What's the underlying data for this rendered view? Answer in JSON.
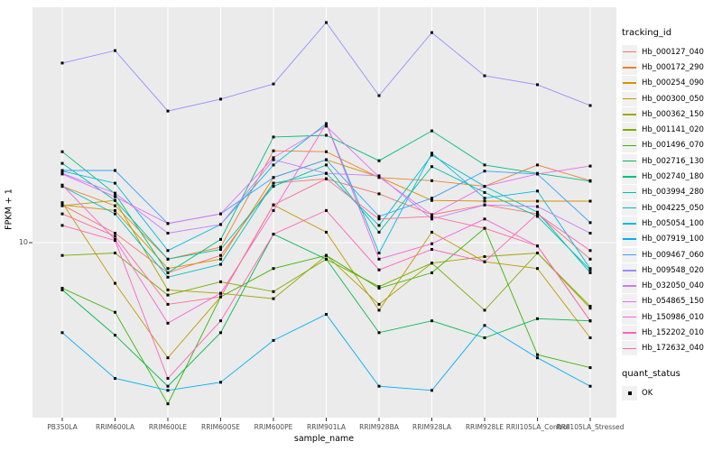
{
  "chart": {
    "ylabel": "FPKM + 1",
    "xlabel": "sample_name",
    "y_tick_label": "10",
    "legend_title": "tracking_id",
    "quant_legend_title": "quant_status",
    "quant_ok_label": "OK"
  },
  "chart_data": {
    "type": "line",
    "title": "",
    "xlabel": "sample_name",
    "ylabel": "FPKM + 1",
    "y_scale": "log10",
    "ylim": [
      2,
      86
    ],
    "y_breaks_labeled": [
      10
    ],
    "grid": true,
    "panel_background": "#EBEBEB",
    "gridline_color": "#FFFFFF",
    "point_marker": "filled-black-square",
    "legend_position": "right",
    "legend_title": "tracking_id",
    "quant_status": {
      "title": "quant_status",
      "values": [
        "OK"
      ]
    },
    "categories": [
      "PB350LA",
      "RRIM600LA",
      "RRIM600LE",
      "RRIM600SE",
      "RRIM600PE",
      "RRIM901LA",
      "RRIM928BA",
      "RRIM928LA",
      "RRIM928LE",
      "RRII105LA_Control",
      "RRII105LA_Stressed"
    ],
    "series": [
      {
        "name": "Hb_000127_040",
        "color": "#F8766D",
        "values": [
          14.1,
          10.9,
          7.6,
          8.9,
          17.2,
          17.9,
          15.6,
          12.9,
          14.1,
          13.0,
          8.6
        ]
      },
      {
        "name": "Hb_000172_290",
        "color": "#EA8331",
        "values": [
          16.7,
          14.0,
          8.6,
          9.6,
          23.1,
          22.9,
          18.1,
          17.6,
          16.7,
          20.3,
          17.6
        ]
      },
      {
        "name": "Hb_000254_090",
        "color": "#D89000",
        "values": [
          14.1,
          13.4,
          7.9,
          8.6,
          18.1,
          21.3,
          18.2,
          14.7,
          14.6,
          14.6,
          14.6
        ]
      },
      {
        "name": "Hb_000300_050",
        "color": "#C09B00",
        "values": [
          14.4,
          6.9,
          3.5,
          6.1,
          14.1,
          11.0,
          5.4,
          11.0,
          8.4,
          7.9,
          4.2
        ]
      },
      {
        "name": "Hb_000362_150",
        "color": "#A3A500",
        "values": [
          14.0,
          14.7,
          6.5,
          6.3,
          6.0,
          8.9,
          5.7,
          8.3,
          8.8,
          9.1,
          5.6
        ]
      },
      {
        "name": "Hb_001141_020",
        "color": "#7CAE00",
        "values": [
          8.9,
          9.1,
          6.2,
          7.0,
          6.4,
          8.6,
          6.7,
          8.3,
          5.4,
          9.1,
          5.5
        ]
      },
      {
        "name": "Hb_001496_070",
        "color": "#39B600",
        "values": [
          6.6,
          5.3,
          2.3,
          6.1,
          7.9,
          8.9,
          6.6,
          7.6,
          11.4,
          3.6,
          3.2
        ]
      },
      {
        "name": "Hb_002716_130",
        "color": "#00BB4E",
        "values": [
          6.5,
          4.3,
          2.7,
          4.4,
          10.8,
          8.6,
          4.4,
          4.9,
          4.2,
          5.0,
          4.9
        ]
      },
      {
        "name": "Hb_002740_180",
        "color": "#00BF7D",
        "values": [
          22.9,
          15.6,
          7.6,
          10.3,
          26.2,
          26.6,
          21.1,
          27.7,
          20.3,
          18.8,
          17.5
        ]
      },
      {
        "name": "Hb_003994_280",
        "color": "#00C1A3",
        "values": [
          20.6,
          14.7,
          8.6,
          9.4,
          16.7,
          20.3,
          11.0,
          20.0,
          15.8,
          12.7,
          7.8
        ]
      },
      {
        "name": "Hb_004225_050",
        "color": "#00BFC4",
        "values": [
          16.7,
          13.0,
          7.3,
          8.2,
          17.2,
          18.8,
          11.7,
          22.2,
          16.7,
          13.2,
          7.6
        ]
      },
      {
        "name": "Hb_005054_100",
        "color": "#00BAE0",
        "values": [
          19.2,
          17.2,
          9.3,
          11.8,
          20.3,
          29.6,
          9.1,
          22.6,
          15.0,
          16.0,
          7.9
        ]
      },
      {
        "name": "Hb_007919_100",
        "color": "#00B0F6",
        "values": [
          4.4,
          2.9,
          2.6,
          2.8,
          4.1,
          5.2,
          2.7,
          2.6,
          4.7,
          3.5,
          2.7
        ]
      },
      {
        "name": "Hb_009467_060",
        "color": "#35A2FF",
        "values": [
          19.3,
          19.3,
          11.9,
          13.0,
          18.1,
          21.3,
          12.7,
          15.0,
          19.2,
          18.7,
          12.0
        ]
      },
      {
        "name": "Hb_009548_020",
        "color": "#9590FF",
        "values": [
          51.4,
          57.6,
          33.2,
          37.0,
          42.5,
          74.4,
          38.2,
          67.9,
          45.8,
          42.2,
          34.9
        ]
      },
      {
        "name": "Hb_032050_040",
        "color": "#C77CFF",
        "values": [
          18.8,
          15.7,
          10.9,
          11.8,
          21.3,
          18.8,
          18.4,
          12.4,
          14.1,
          13.9,
          10.9
        ]
      },
      {
        "name": "Hb_054865_150",
        "color": "#E76BF3",
        "values": [
          18.7,
          15.2,
          11.9,
          13.0,
          21.7,
          28.9,
          18.2,
          12.9,
          16.7,
          18.7,
          20.1
        ]
      },
      {
        "name": "Hb_150986_010",
        "color": "#FA62DB",
        "values": [
          16.9,
          10.3,
          4.8,
          6.3,
          13.4,
          29.6,
          8.6,
          9.9,
          12.4,
          9.7,
          4.9
        ]
      },
      {
        "name": "Hb_152202_010",
        "color": "#FF62BC",
        "values": [
          11.7,
          10.2,
          2.9,
          4.9,
          10.8,
          13.4,
          7.8,
          9.4,
          8.4,
          13.0,
          9.3
        ]
      },
      {
        "name": "Hb_172632_040",
        "color": "#FF6A98",
        "values": [
          13.0,
          10.6,
          5.7,
          6.1,
          14.1,
          17.9,
          12.4,
          12.7,
          11.4,
          9.7,
          4.9
        ]
      }
    ]
  }
}
